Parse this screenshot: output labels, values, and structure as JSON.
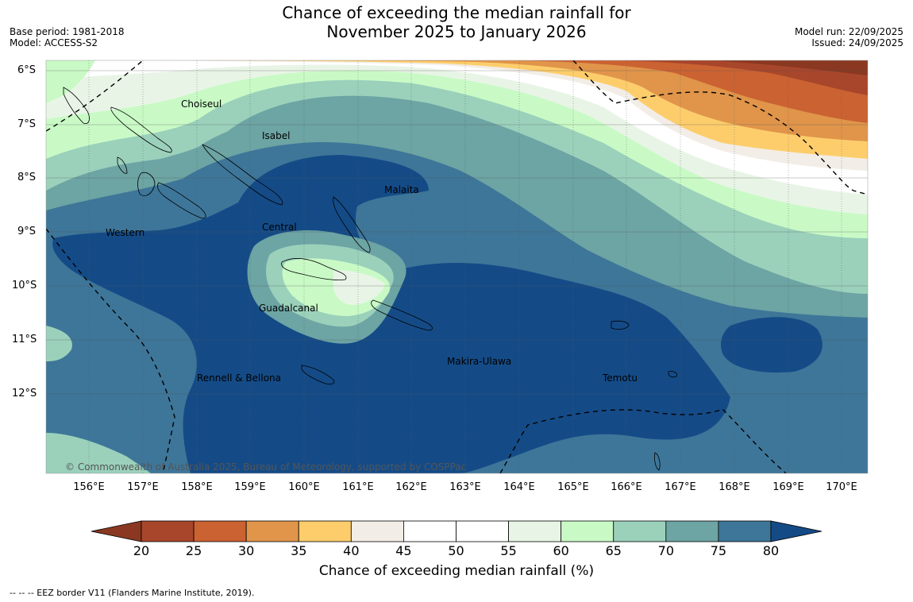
{
  "title_line1": "Chance of exceeding the median rainfall for",
  "title_line2": "November 2025 to January 2026",
  "meta_left": {
    "base_period": "Base period: 1981-2018",
    "model": "Model: ACCESS-S2"
  },
  "meta_right": {
    "model_run": "Model run: 22/09/2025",
    "issued": "Issued: 24/09/2025"
  },
  "map": {
    "lat_labels": [
      "6°S",
      "7°S",
      "8°S",
      "9°S",
      "10°S",
      "11°S",
      "12°S"
    ],
    "lon_labels": [
      "156°E",
      "157°E",
      "158°E",
      "159°E",
      "160°E",
      "161°E",
      "162°E",
      "163°E",
      "164°E",
      "165°E",
      "166°E",
      "167°E",
      "168°E",
      "169°E",
      "170°E"
    ],
    "places": [
      "Choiseul",
      "Isabel",
      "Malaita",
      "Western",
      "Central",
      "Guadalcanal",
      "Makira-Ulawa",
      "Rennell & Bellona",
      "Temotu"
    ],
    "copyright": "© Commonwealth of Australia 2025, Bureau of Meteorology, supported by COSPPac"
  },
  "colorbar": {
    "ticks": [
      "20",
      "25",
      "30",
      "35",
      "40",
      "45",
      "50",
      "55",
      "60",
      "65",
      "70",
      "75",
      "80"
    ],
    "colors": [
      "#a8462b",
      "#cb6232",
      "#e0954a",
      "#fdcd6c",
      "#f2ede6",
      "#ffffff",
      "#ffffff",
      "#e8f5e6",
      "#c9fac6",
      "#9bd1bb",
      "#6da4a4",
      "#3e7699"
    ],
    "below_color": "#8a3821",
    "above_color": "#144b87",
    "label": "Chance of exceeding median rainfall (%)"
  },
  "footnote": "--  --  -- EEZ border V11 (Flanders Marine Institute, 2019)."
}
